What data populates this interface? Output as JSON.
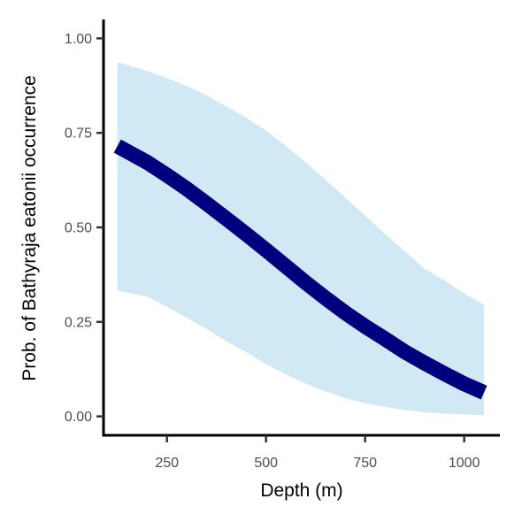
{
  "chart_data": {
    "type": "line",
    "xlabel": "Depth (m)",
    "ylabel": "Prob. of  Bathyraja eatonii  occurrence",
    "xlim": [
      90,
      1090
    ],
    "ylim": [
      -0.05,
      1.05
    ],
    "x_ticks": [
      250,
      500,
      750,
      1000
    ],
    "y_ticks": [
      0.0,
      0.25,
      0.5,
      0.75,
      1.0
    ],
    "x_tick_labels": [
      "250",
      "500",
      "750",
      "1000"
    ],
    "y_tick_labels": [
      "0.00",
      "0.25",
      "0.50",
      "0.75",
      "1.00"
    ],
    "grid": false,
    "legend": "none",
    "series": [
      {
        "x": [
          125,
          200,
          250,
          300,
          350,
          400,
          450,
          500,
          550,
          600,
          650,
          700,
          750,
          800,
          850,
          900,
          950,
          1000,
          1050
        ],
        "y": [
          0.715,
          0.672,
          0.638,
          0.602,
          0.563,
          0.523,
          0.482,
          0.44,
          0.397,
          0.354,
          0.313,
          0.274,
          0.238,
          0.205,
          0.171,
          0.141,
          0.113,
          0.086,
          0.063
        ],
        "upper": [
          0.937,
          0.914,
          0.895,
          0.874,
          0.849,
          0.82,
          0.79,
          0.756,
          0.715,
          0.672,
          0.626,
          0.579,
          0.531,
          0.483,
          0.437,
          0.39,
          0.36,
          0.325,
          0.295
        ],
        "lower": [
          0.333,
          0.317,
          0.29,
          0.261,
          0.231,
          0.198,
          0.17,
          0.138,
          0.111,
          0.087,
          0.066,
          0.048,
          0.035,
          0.025,
          0.017,
          0.011,
          0.007,
          0.005,
          0.003
        ]
      }
    ],
    "colors": {
      "line": "#00007f",
      "ribbon": "#d0e9f5",
      "axis": "#000000",
      "tick_text": "#4d4d4d"
    }
  }
}
